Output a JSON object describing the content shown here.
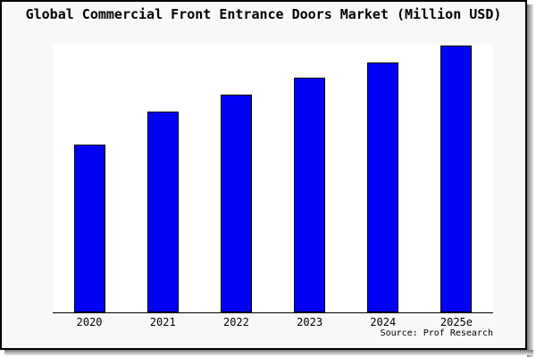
{
  "title": "Global Commercial Front Entrance Doors Market (Million USD)",
  "source": "Source: Prof Research",
  "colors": {
    "bar_fill": "#0101f5",
    "bar_border": "#000000",
    "frame_background": "#f8f8f8",
    "plot_background": "#ffffff",
    "axis": "#000000",
    "text": "#000000",
    "shadow": "#787878"
  },
  "chart_data": {
    "type": "bar",
    "title": "Global Commercial Front Entrance Doors Market (Million USD)",
    "categories": [
      "2020",
      "2021",
      "2022",
      "2023",
      "2024",
      "2025e"
    ],
    "values": [
      62.7,
      75.2,
      81.4,
      87.7,
      93.5,
      100
    ],
    "xlabel": "",
    "ylabel": "",
    "ylim": [
      0,
      100.2
    ],
    "y_axis_ticks_visible": false,
    "grid": false,
    "legend": false,
    "values_note": "relative bar heights estimated from pixels; no y-axis scale shown, tallest bar (2025e) = 100",
    "source_annotation": "Source: Prof Research"
  }
}
